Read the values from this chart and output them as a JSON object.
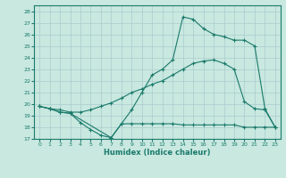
{
  "xlabel": "Humidex (Indice chaleur)",
  "xlim": [
    -0.5,
    23.5
  ],
  "ylim": [
    17,
    28.5
  ],
  "yticks": [
    17,
    18,
    19,
    20,
    21,
    22,
    23,
    24,
    25,
    26,
    27,
    28
  ],
  "xticks": [
    0,
    1,
    2,
    3,
    4,
    5,
    6,
    7,
    8,
    9,
    10,
    11,
    12,
    13,
    14,
    15,
    16,
    17,
    18,
    19,
    20,
    21,
    22,
    23
  ],
  "bg_color": "#c8e8e0",
  "grid_color": "#aacccc",
  "line_color": "#1a7a6a",
  "series": [
    {
      "x": [
        0,
        1,
        2,
        3,
        4,
        5,
        6,
        7,
        8,
        9,
        10,
        11,
        12,
        13,
        14,
        15,
        16,
        17,
        18,
        19,
        20,
        21,
        22,
        23
      ],
      "y": [
        19.8,
        19.6,
        19.3,
        19.2,
        18.4,
        17.8,
        17.3,
        17.1,
        18.3,
        18.3,
        18.3,
        18.3,
        18.3,
        18.3,
        18.2,
        18.2,
        18.2,
        18.2,
        18.2,
        18.2,
        18.0,
        18.0,
        18.0,
        18.0
      ]
    },
    {
      "x": [
        0,
        1,
        2,
        3,
        4,
        5,
        6,
        7,
        8,
        9,
        10,
        11,
        12,
        13,
        14,
        15,
        16,
        17,
        18,
        19,
        20,
        21,
        22,
        23
      ],
      "y": [
        19.8,
        19.6,
        19.5,
        19.3,
        19.3,
        19.5,
        19.8,
        20.1,
        20.5,
        21.0,
        21.3,
        21.7,
        22.0,
        22.5,
        23.0,
        23.5,
        23.7,
        23.8,
        23.5,
        23.0,
        20.2,
        19.6,
        19.5,
        18.0
      ]
    },
    {
      "x": [
        0,
        1,
        2,
        3,
        7,
        8,
        9,
        10,
        11,
        12,
        13,
        14,
        15,
        16,
        17,
        18,
        19,
        20,
        21,
        22,
        23
      ],
      "y": [
        19.8,
        19.6,
        19.3,
        19.2,
        17.1,
        18.3,
        19.5,
        21.0,
        22.5,
        23.0,
        23.8,
        27.5,
        27.3,
        26.5,
        26.0,
        25.8,
        25.5,
        25.5,
        25.0,
        19.6,
        18.0
      ]
    }
  ]
}
